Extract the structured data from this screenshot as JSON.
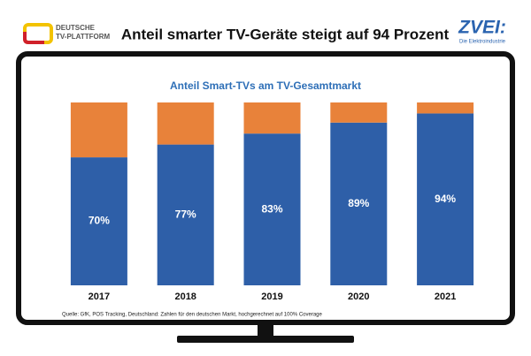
{
  "header": {
    "logo_left": [
      "DEUTSCHE",
      "TV-PLATTFORM"
    ],
    "logo_right": "ZVEI:",
    "logo_right_sub": "Die Elektroindustrie"
  },
  "chart_data": {
    "type": "stacked-bar",
    "title": "Anteil smarter TV-Geräte steigt auf 94 Prozent",
    "subtitle": "Anteil Smart-TVs am TV-Gesamtmarkt",
    "source": "Quelle: GfK, POS Tracking, Deutschland: Zahlen für den deutschen Markt, hochgerechnet auf 100% Coverage",
    "categories": [
      "2017",
      "2018",
      "2019",
      "2020",
      "2021"
    ],
    "series": [
      {
        "color": "#2e5fa8",
        "values": [
          70,
          77,
          83,
          89,
          94
        ],
        "value_labels": [
          "70%",
          "77%",
          "83%",
          "89%",
          "94%"
        ]
      },
      {
        "color": "#e8823a",
        "values": [
          30,
          23,
          17,
          11,
          6
        ]
      }
    ],
    "ylim": [
      0,
      100
    ]
  }
}
